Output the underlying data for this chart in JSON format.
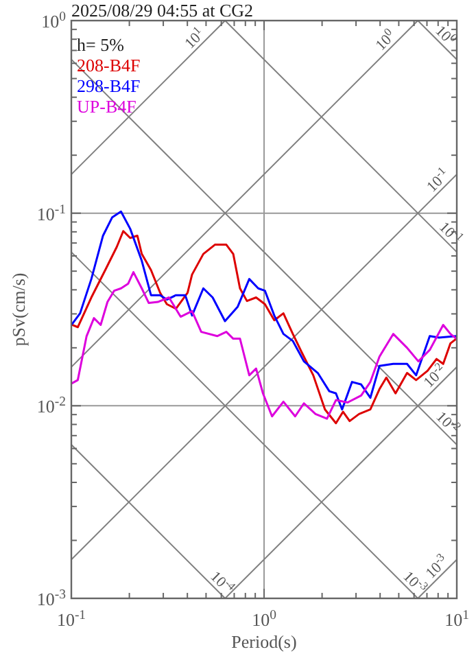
{
  "chart_data": {
    "type": "line",
    "title": "2025/08/29 04:55 at CG2",
    "xlabel": "Period(s)",
    "ylabel": "pSv(cm/s)",
    "legend_title": "h= 5%",
    "legend": "top left",
    "log": "xy",
    "grid": true,
    "xlim": [
      0.1,
      10
    ],
    "ylim": [
      0.001,
      1
    ],
    "xticks": [
      {
        "value": 0.1,
        "label": "10$^{-1}$"
      },
      {
        "value": 0.2,
        "label": null
      },
      {
        "value": 0.3,
        "label": null
      },
      {
        "value": 0.4,
        "label": null
      },
      {
        "value": 0.5,
        "label": null
      },
      {
        "value": 0.6,
        "label": null
      },
      {
        "value": 0.7,
        "label": null
      },
      {
        "value": 0.8,
        "label": null
      },
      {
        "value": 0.9,
        "label": null
      },
      {
        "value": 1,
        "label": "10$^{0}$"
      },
      {
        "value": 2,
        "label": null
      },
      {
        "value": 3,
        "label": null
      },
      {
        "value": 4,
        "label": null
      },
      {
        "value": 5,
        "label": null
      },
      {
        "value": 6,
        "label": null
      },
      {
        "value": 7,
        "label": null
      },
      {
        "value": 8,
        "label": null
      },
      {
        "value": 9,
        "label": null
      },
      {
        "value": 10,
        "label": "10$^{1}$"
      }
    ],
    "yticks": [
      {
        "value": 0.001,
        "label": "10$^{-3}$"
      },
      {
        "value": 0.002,
        "label": null
      },
      {
        "value": 0.003,
        "label": null
      },
      {
        "value": 0.004,
        "label": null
      },
      {
        "value": 0.005,
        "label": null
      },
      {
        "value": 0.006,
        "label": null
      },
      {
        "value": 0.007,
        "label": null
      },
      {
        "value": 0.008,
        "label": null
      },
      {
        "value": 0.009,
        "label": null
      },
      {
        "value": 0.01,
        "label": "10$^{-2}$"
      },
      {
        "value": 0.02,
        "label": null
      },
      {
        "value": 0.03,
        "label": null
      },
      {
        "value": 0.04,
        "label": null
      },
      {
        "value": 0.05,
        "label": null
      },
      {
        "value": 0.06,
        "label": null
      },
      {
        "value": 0.07,
        "label": null
      },
      {
        "value": 0.08,
        "label": null
      },
      {
        "value": 0.09,
        "label": null
      },
      {
        "value": 0.1,
        "label": "10$^{-1}$"
      },
      {
        "value": 0.2,
        "label": null
      },
      {
        "value": 0.3,
        "label": null
      },
      {
        "value": 0.4,
        "label": null
      },
      {
        "value": 0.5,
        "label": null
      },
      {
        "value": 0.6,
        "label": null
      },
      {
        "value": 0.7,
        "label": null
      },
      {
        "value": 0.8,
        "label": null
      },
      {
        "value": 0.9,
        "label": null
      },
      {
        "value": 1,
        "label": "10$^{0}$"
      }
    ],
    "line_style": "solid",
    "marker": "none",
    "series": [
      {
        "name": "208-B4F",
        "color": "#dd0000",
        "x": [
          0.101,
          0.108,
          0.127,
          0.15,
          0.172,
          0.186,
          0.202,
          0.22,
          0.232,
          0.259,
          0.289,
          0.313,
          0.349,
          0.401,
          0.423,
          0.484,
          0.556,
          0.637,
          0.692,
          0.75,
          0.815,
          0.909,
          1.01,
          1.13,
          1.26,
          1.41,
          1.57,
          1.8,
          2.07,
          2.36,
          2.57,
          2.78,
          3.11,
          3.56,
          3.97,
          4.31,
          4.81,
          5.52,
          6.15,
          7.05,
          7.85,
          8.5,
          9.27,
          9.95
        ],
        "values": [
          0.0263,
          0.0256,
          0.0365,
          0.0507,
          0.0667,
          0.0807,
          0.0744,
          0.0764,
          0.0614,
          0.0507,
          0.0386,
          0.0337,
          0.0319,
          0.0386,
          0.048,
          0.0614,
          0.0686,
          0.0686,
          0.0614,
          0.0407,
          0.035,
          0.0365,
          0.0337,
          0.0278,
          0.0302,
          0.0236,
          0.0189,
          0.0144,
          0.00957,
          0.00812,
          0.00931,
          0.00833,
          0.00906,
          0.00957,
          0.0122,
          0.014,
          0.0116,
          0.0148,
          0.0136,
          0.0152,
          0.0175,
          0.0165,
          0.0211,
          0.0223
        ]
      },
      {
        "name": "298-B4F",
        "color": "#0000ff",
        "x": [
          0.101,
          0.111,
          0.127,
          0.146,
          0.163,
          0.181,
          0.202,
          0.232,
          0.259,
          0.289,
          0.313,
          0.349,
          0.39,
          0.423,
          0.484,
          0.541,
          0.627,
          0.73,
          0.838,
          0.933,
          1.01,
          1.13,
          1.26,
          1.41,
          1.61,
          1.9,
          2.18,
          2.36,
          2.54,
          2.86,
          3.19,
          3.56,
          3.97,
          4.68,
          5.52,
          6.15,
          7.24,
          8.08,
          9.95
        ],
        "values": [
          0.0266,
          0.0302,
          0.0455,
          0.0764,
          0.0952,
          0.102,
          0.083,
          0.0566,
          0.0375,
          0.0375,
          0.0356,
          0.0375,
          0.0375,
          0.0294,
          0.0407,
          0.0365,
          0.0275,
          0.0327,
          0.0455,
          0.0407,
          0.0396,
          0.0294,
          0.0236,
          0.0217,
          0.017,
          0.0148,
          0.0119,
          0.0116,
          0.00957,
          0.0133,
          0.0129,
          0.011,
          0.0161,
          0.0165,
          0.0165,
          0.0144,
          0.023,
          0.0226,
          0.023
        ]
      },
      {
        "name": "UP-B4F",
        "color": "#dd00dd",
        "x": [
          0.101,
          0.108,
          0.12,
          0.131,
          0.142,
          0.154,
          0.167,
          0.181,
          0.197,
          0.21,
          0.232,
          0.252,
          0.281,
          0.321,
          0.369,
          0.423,
          0.472,
          0.571,
          0.637,
          0.692,
          0.75,
          0.838,
          0.909,
          0.987,
          1.1,
          1.26,
          1.45,
          1.61,
          1.85,
          2.12,
          2.36,
          2.71,
          3.19,
          3.56,
          3.97,
          4.68,
          5.52,
          6.32,
          7.24,
          8.5,
          9.27,
          9.95
        ],
        "values": [
          0.0131,
          0.0136,
          0.023,
          0.0285,
          0.0263,
          0.0346,
          0.0396,
          0.0407,
          0.043,
          0.0494,
          0.0407,
          0.0342,
          0.0346,
          0.0365,
          0.029,
          0.031,
          0.0242,
          0.023,
          0.0242,
          0.0223,
          0.0223,
          0.0144,
          0.0156,
          0.0116,
          0.00881,
          0.0105,
          0.00881,
          0.0103,
          0.00906,
          0.00857,
          0.0107,
          0.0104,
          0.0113,
          0.0133,
          0.018,
          0.0236,
          0.02,
          0.017,
          0.0195,
          0.0263,
          0.0236,
          0.0223
        ]
      },
      {
        "color": "#808080",
        "x": [
          0.1,
          0.628
        ],
        "values": [
          0.159,
          1
        ]
      },
      {
        "color": "#808080",
        "x": [
          0.1,
          6.28
        ],
        "values": [
          0.0159,
          1
        ]
      },
      {
        "color": "#808080",
        "x": [
          0.1,
          10
        ],
        "values": [
          0.00159,
          0.159
        ]
      },
      {
        "color": "#808080",
        "x": [
          0.628,
          10
        ],
        "values": [
          0.001,
          0.0159
        ]
      },
      {
        "color": "#808080",
        "x": [
          6.28,
          10
        ],
        "values": [
          0.001,
          0.00159
        ]
      },
      {
        "color": "#808080",
        "x": [
          6.28,
          10
        ],
        "values": [
          1,
          0.628
        ]
      },
      {
        "color": "#808080",
        "x": [
          0.628,
          10
        ],
        "values": [
          1,
          0.0628
        ]
      },
      {
        "color": "#808080",
        "x": [
          0.1,
          10
        ],
        "values": [
          0.628,
          0.00628
        ]
      },
      {
        "color": "#808080",
        "x": [
          0.1,
          6.28
        ],
        "values": [
          0.0628,
          0.001
        ]
      },
      {
        "color": "#808080",
        "x": [
          0.1,
          0.628
        ],
        "values": [
          0.00628,
          0.001
        ]
      }
    ],
    "annotations": [
      {
        "text": "10$^{1}$",
        "x": 0.47,
        "y": 0.748
      },
      {
        "text": "10$^{0}$",
        "x": 4.6,
        "y": 0.732
      },
      {
        "text": "10$^{0}$",
        "x": 8.1,
        "y": 0.776
      },
      {
        "text": "10$^{-1}$",
        "x": 8.6,
        "y": 0.137
      },
      {
        "text": "10$^{-1}$",
        "x": 8.6,
        "y": 0.0731
      },
      {
        "text": "10$^{-2}$",
        "x": 8.3,
        "y": 0.0132
      },
      {
        "text": "10$^{-2}$",
        "x": 8.3,
        "y": 0.00757
      },
      {
        "text": "10$^{-3}$",
        "x": 8.5,
        "y": 0.00135
      },
      {
        "text": "10$^{-3}$",
        "x": 5.6,
        "y": 0.00112
      },
      {
        "text": "10$^{-4}$",
        "x": 0.56,
        "y": 0.00112
      }
    ]
  }
}
